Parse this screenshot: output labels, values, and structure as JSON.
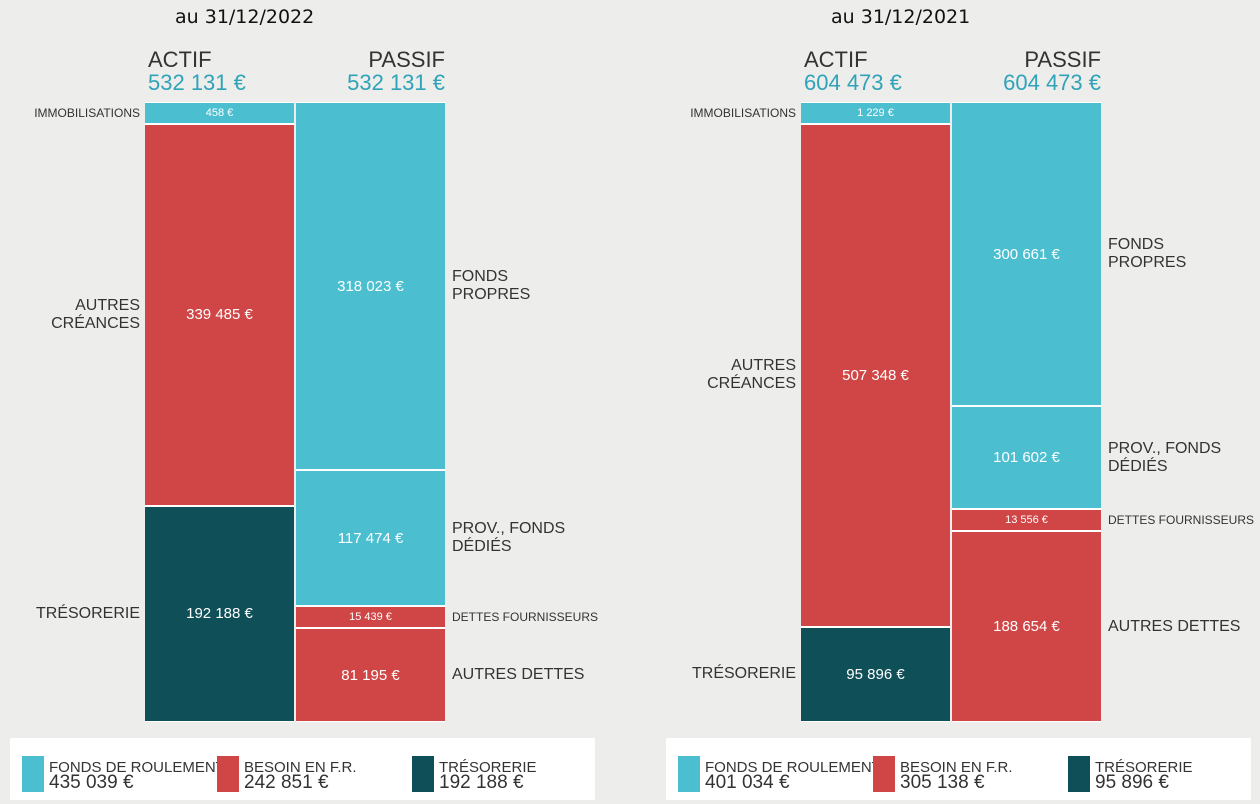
{
  "chart_data": [
    {
      "type": "balance",
      "title": "au 31/12/2022",
      "columns": [
        {
          "name": "ACTIF",
          "total": 532131,
          "total_label": "532 131 €",
          "segments": [
            {
              "name": "IMMOBILISATIONS",
              "value": 458,
              "value_label": "458 €",
              "color": "#4bbfd0"
            },
            {
              "name": "AUTRES\nCRÉANCES",
              "value": 339485,
              "value_label": "339 485 €",
              "color": "#d04545"
            },
            {
              "name": "TRÉSORERIE",
              "value": 192188,
              "value_label": "192 188 €",
              "color": "#0f4f57"
            }
          ]
        },
        {
          "name": "PASSIF",
          "total": 532131,
          "total_label": "532 131 €",
          "segments": [
            {
              "name": "FONDS\nPROPRES",
              "value": 318023,
              "value_label": "318 023 €",
              "color": "#4bbfd0"
            },
            {
              "name": "PROV., FONDS\nDÉDIÉS",
              "value": 117474,
              "value_label": "117 474 €",
              "color": "#4bbfd0"
            },
            {
              "name": "DETTES FOURNISSEURS",
              "value": 15439,
              "value_label": "15 439 €",
              "color": "#d04545"
            },
            {
              "name": "AUTRES DETTES",
              "value": 81195,
              "value_label": "81 195 €",
              "color": "#d04545"
            }
          ]
        }
      ],
      "legend": [
        {
          "name": "FONDS DE ROULEMENT",
          "value": 435039,
          "value_label": "435 039 €",
          "color": "#4bbfd0"
        },
        {
          "name": "BESOIN EN F.R.",
          "value": 242851,
          "value_label": "242 851 €",
          "color": "#d04545"
        },
        {
          "name": "TRÉSORERIE",
          "value": 192188,
          "value_label": "192 188 €",
          "color": "#0f4f57"
        }
      ]
    },
    {
      "type": "balance",
      "title": "au 31/12/2021",
      "columns": [
        {
          "name": "ACTIF",
          "total": 604473,
          "total_label": "604 473 €",
          "segments": [
            {
              "name": "IMMOBILISATIONS",
              "value": 1229,
              "value_label": "1 229 €",
              "color": "#4bbfd0"
            },
            {
              "name": "AUTRES\nCRÉANCES",
              "value": 507348,
              "value_label": "507 348 €",
              "color": "#d04545"
            },
            {
              "name": "TRÉSORERIE",
              "value": 95896,
              "value_label": "95 896 €",
              "color": "#0f4f57"
            }
          ]
        },
        {
          "name": "PASSIF",
          "total": 604473,
          "total_label": "604 473 €",
          "segments": [
            {
              "name": "FONDS\nPROPRES",
              "value": 300661,
              "value_label": "300 661 €",
              "color": "#4bbfd0"
            },
            {
              "name": "PROV., FONDS\nDÉDIÉS",
              "value": 101602,
              "value_label": "101 602 €",
              "color": "#4bbfd0"
            },
            {
              "name": "DETTES FOURNISSEURS",
              "value": 13556,
              "value_label": "13 556 €",
              "color": "#d04545"
            },
            {
              "name": "AUTRES DETTES",
              "value": 188654,
              "value_label": "188 654 €",
              "color": "#d04545"
            }
          ]
        }
      ],
      "legend": [
        {
          "name": "FONDS DE ROULEMENT",
          "value": 401034,
          "value_label": "401 034 €",
          "color": "#4bbfd0"
        },
        {
          "name": "BESOIN EN F.R.",
          "value": 305138,
          "value_label": "305 138 €",
          "color": "#d04545"
        },
        {
          "name": "TRÉSORERIE",
          "value": 95896,
          "value_label": "95 896 €",
          "color": "#0f4f57"
        }
      ]
    }
  ]
}
